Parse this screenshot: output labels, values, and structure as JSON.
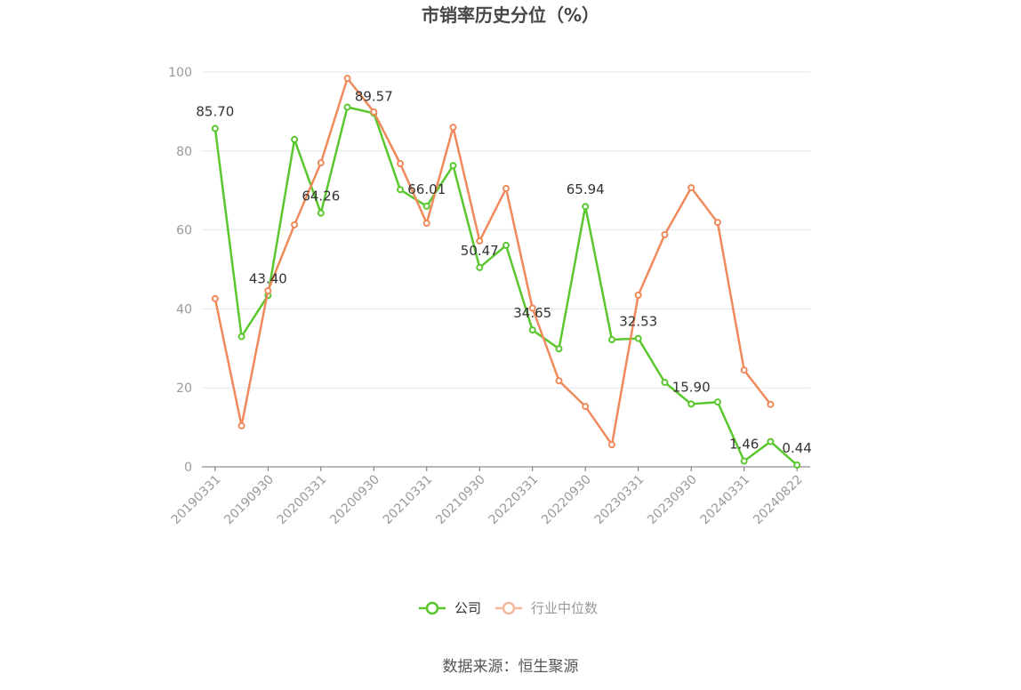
{
  "chart_data": {
    "type": "line",
    "title": "市销率历史分位（%）",
    "categories": [
      "20190331",
      "",
      "20190930",
      "",
      "20200331",
      "",
      "20200930",
      "",
      "20210331",
      "",
      "20210930",
      "",
      "20220331",
      "",
      "20220930",
      "",
      "20230331",
      "",
      "20230930",
      "",
      "20240331",
      "",
      "20240822"
    ],
    "ylim": [
      0,
      100
    ],
    "yticks": [
      0,
      20,
      40,
      60,
      80,
      100
    ],
    "grid": true,
    "legend_position": "bottom",
    "series": [
      {
        "name": "公司",
        "color": "#5bc72e",
        "values": [
          85.7,
          33.0,
          43.4,
          82.9,
          64.26,
          91.1,
          89.57,
          70.2,
          66.01,
          76.3,
          50.47,
          56.1,
          34.65,
          29.9,
          65.94,
          32.2,
          32.53,
          21.4,
          15.9,
          16.4,
          1.46,
          6.4,
          0.44
        ],
        "labels": [
          "85.70",
          null,
          "43.40",
          null,
          "64.26",
          null,
          "89.57",
          null,
          "66.01",
          null,
          "50.47",
          null,
          "34.65",
          null,
          "65.94",
          null,
          "32.53",
          null,
          "15.90",
          null,
          "1.46",
          null,
          "0.44"
        ]
      },
      {
        "name": "行业中位数",
        "color": "#f08a5c",
        "values": [
          42.6,
          10.4,
          44.6,
          61.3,
          77.0,
          98.4,
          89.9,
          76.8,
          61.7,
          86.0,
          57.2,
          70.5,
          40.2,
          21.8,
          15.3,
          5.6,
          43.5,
          58.8,
          70.7,
          61.9,
          24.5,
          15.8,
          null
        ]
      }
    ]
  },
  "legend": {
    "items": [
      {
        "icon_color": "#5bc72e",
        "text_color": "#333333"
      },
      {
        "icon_color": "#f6b89c",
        "text_color": "#999999"
      }
    ]
  },
  "source": "数据来源：恒生聚源"
}
